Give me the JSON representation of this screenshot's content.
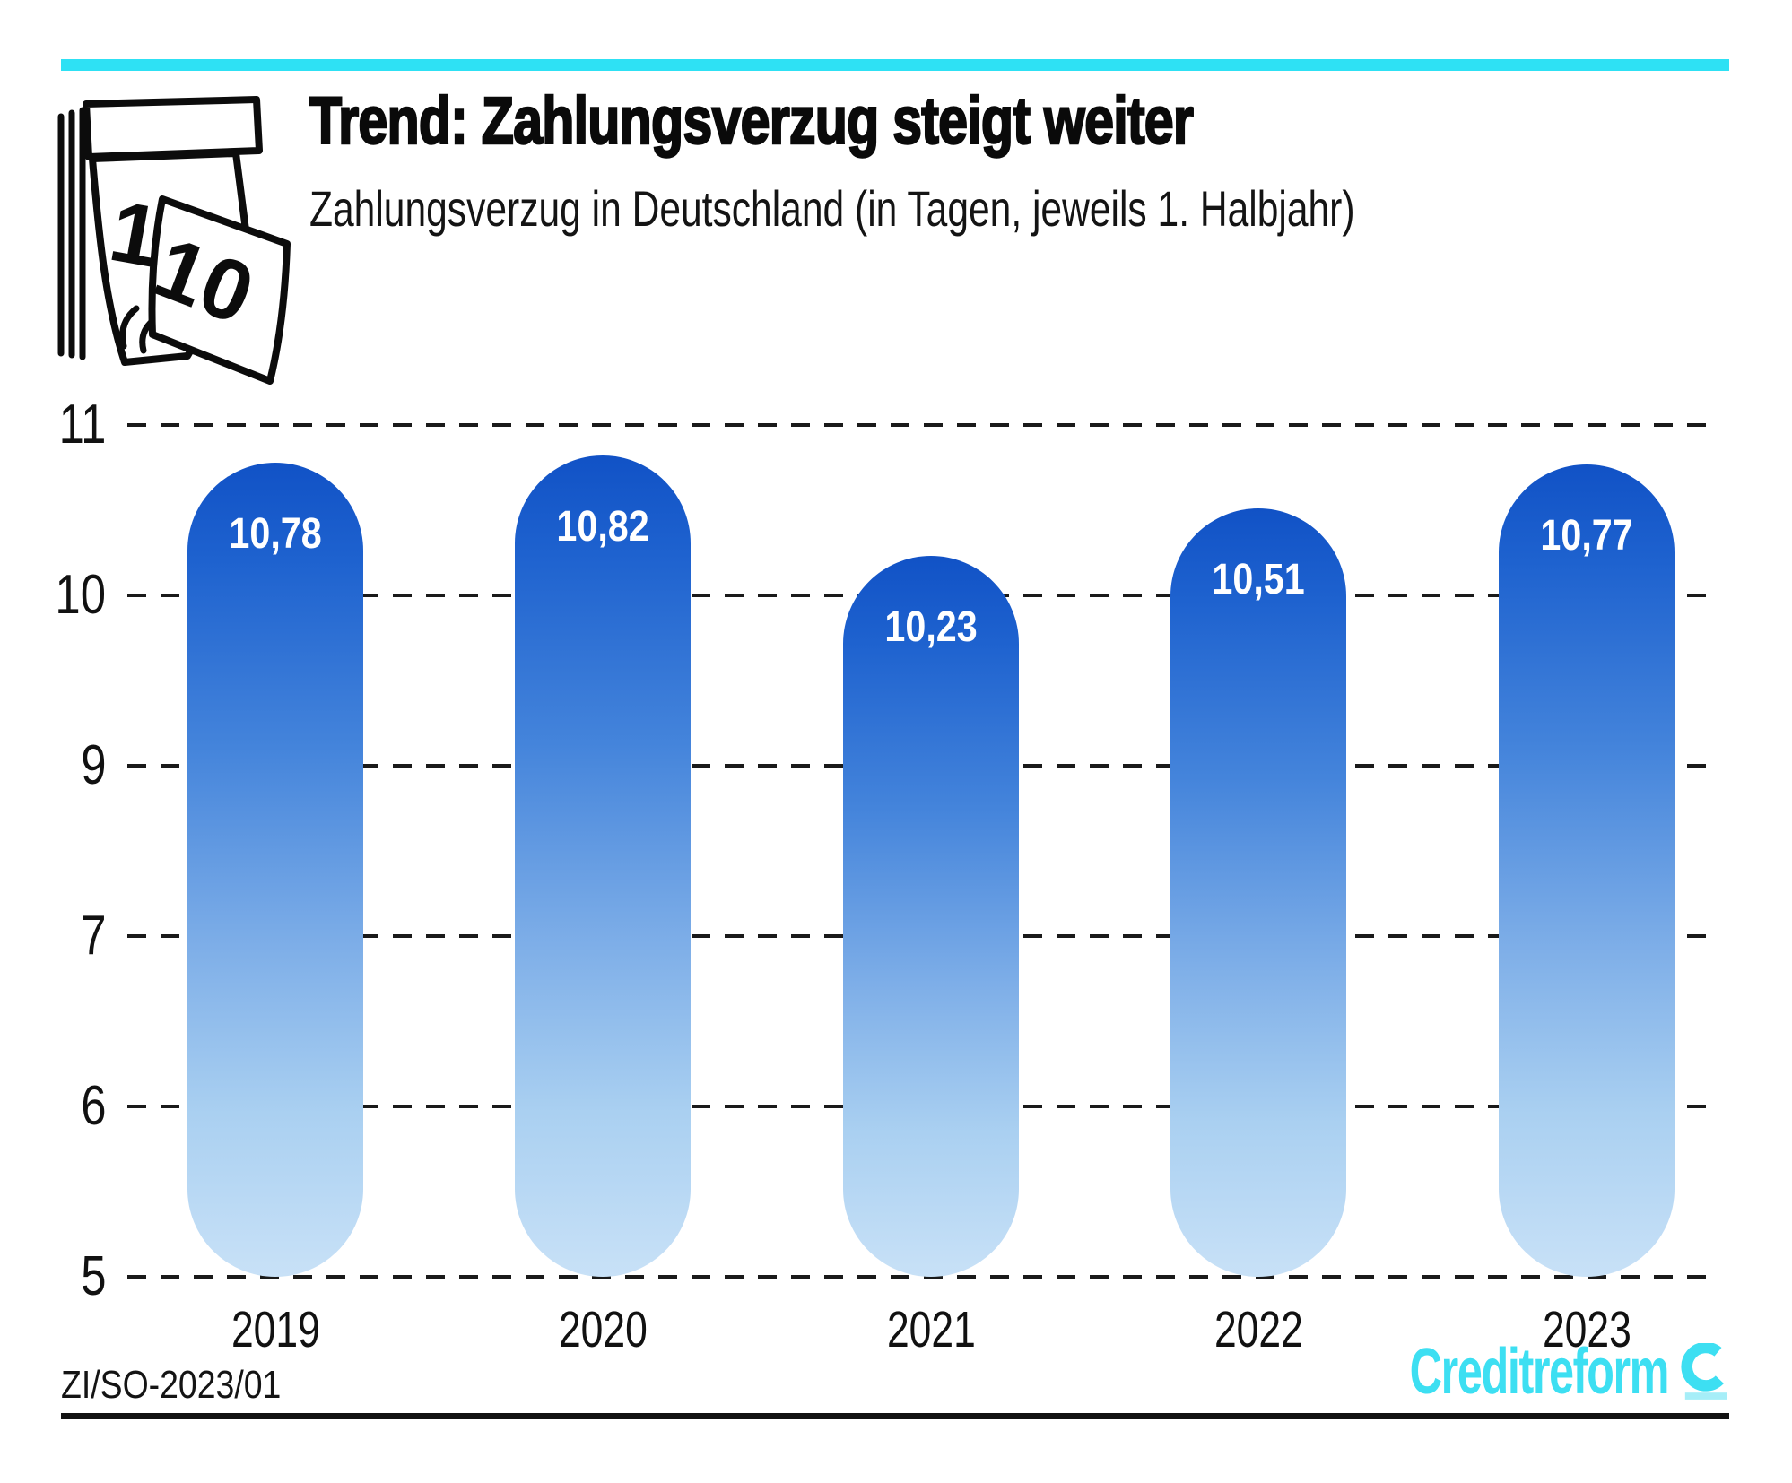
{
  "header": {
    "title": "Trend: Zahlungsverzug steigt weiter",
    "subtitle": "Zahlungsverzug in Deutschland (in Tagen, jeweils 1. Halbjahr)",
    "icon_numbers": {
      "current": "11",
      "falling": "10"
    }
  },
  "chart_data": {
    "type": "bar",
    "categories": [
      "2019",
      "2020",
      "2021",
      "2022",
      "2023"
    ],
    "values": [
      10.78,
      10.82,
      10.23,
      10.51,
      10.77
    ],
    "value_labels": [
      "10,78",
      "10,82",
      "10,23",
      "10,51",
      "10,77"
    ],
    "title": "Trend: Zahlungsverzug steigt weiter",
    "subtitle": "Zahlungsverzug in Deutschland (in Tagen, jeweils 1. Halbjahr)",
    "y_axis": {
      "tick_labels": [
        "11",
        "10",
        "9",
        "7",
        "6",
        "5"
      ],
      "top_tick_value": 11,
      "value_step_per_gridline": 1,
      "grid_style": "dashed"
    },
    "legend": null
  },
  "footer": {
    "source_code": "ZI/SO-2023/01",
    "brand": "Creditreform"
  },
  "colors": {
    "accent_cyan": "#2EE1F4",
    "logo_cyan": "#3DDFF2",
    "logo_underline_cyan": "#A6EEF8",
    "grid": "#1A1A1A",
    "value_label": "#FFFFFF",
    "bar_gradient": [
      "#1152C6",
      "#1E62CF",
      "#4484DB",
      "#7FAFE8",
      "#AAD0F1",
      "#C8E1F7"
    ],
    "bar_gradient_stops": [
      0,
      12,
      35,
      60,
      80,
      100
    ]
  }
}
